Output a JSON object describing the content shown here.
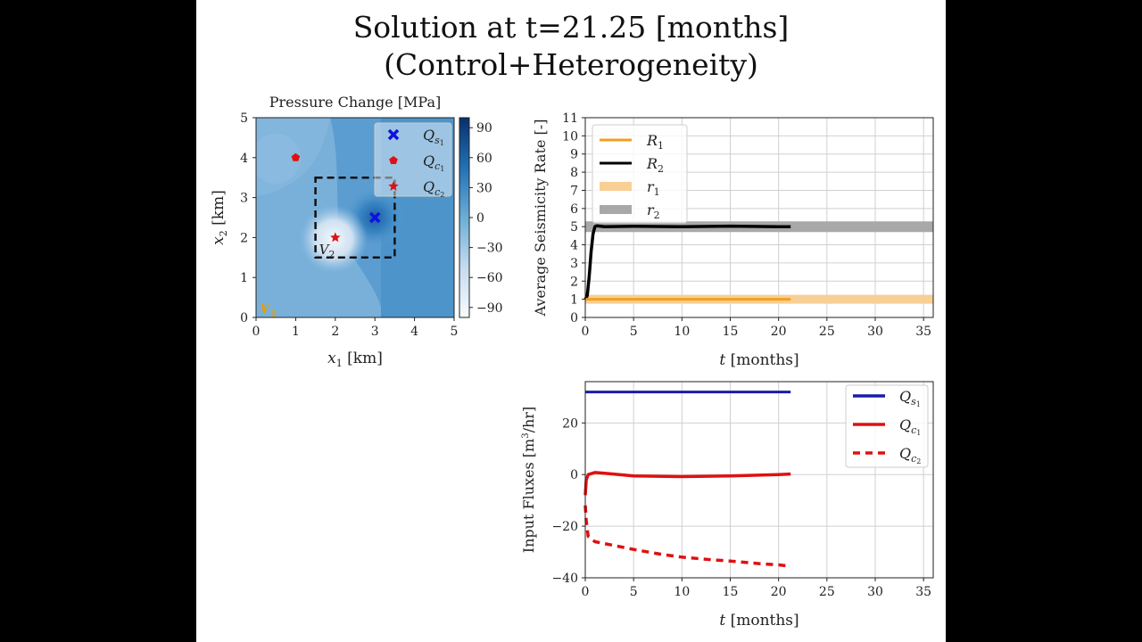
{
  "title_line1": "Solution at t=21.25 [months]",
  "title_line2": "(Control+Heterogeneity)",
  "chart_data": [
    {
      "type": "heatmap",
      "title": "Pressure Change [MPa]",
      "xlabel": "x1 [km]",
      "ylabel": "x2 [km]",
      "xlim": [
        0,
        5
      ],
      "ylim": [
        0,
        5
      ],
      "xticks": [
        "0",
        "1",
        "2",
        "3",
        "4",
        "5"
      ],
      "yticks": [
        "0",
        "1",
        "2",
        "3",
        "4",
        "5"
      ],
      "colorbar_ticks": [
        "90",
        "60",
        "30",
        "0",
        "−30",
        "−60",
        "−90"
      ],
      "colorbar_range": [
        -100,
        100
      ],
      "colormap": [
        "#f7fbff",
        "#08306b"
      ],
      "legend_position": "top-right",
      "legend": [
        {
          "label": "Q_s1",
          "marker": "x",
          "color": "#1010e0"
        },
        {
          "label": "Q_c1",
          "marker": "pentagon",
          "color": "#e01010"
        },
        {
          "label": "Q_c2",
          "marker": "star",
          "color": "#e01010"
        }
      ],
      "points": [
        {
          "name": "Q_s1",
          "x": 3.0,
          "y": 2.5,
          "marker": "x",
          "color": "#1010e0"
        },
        {
          "name": "Q_c1",
          "x": 1.0,
          "y": 4.0,
          "marker": "pentagon",
          "color": "#e01010"
        },
        {
          "name": "Q_c2",
          "x": 2.0,
          "y": 2.0,
          "marker": "star",
          "color": "#e01010"
        }
      ],
      "region_V2": {
        "label": "V2",
        "x": [
          1.5,
          3.5
        ],
        "y": [
          1.5,
          3.5
        ]
      },
      "region_V1_label": "V1",
      "region_V1_color": "#e69f00"
    },
    {
      "type": "line",
      "xlabel": "t [months]",
      "ylabel": "Average Seismicity Rate [-]",
      "xlim": [
        0,
        36
      ],
      "ylim": [
        0,
        11
      ],
      "xticks": [
        0,
        5,
        10,
        15,
        20,
        25,
        30,
        35
      ],
      "yticks": [
        0,
        1,
        2,
        3,
        4,
        5,
        6,
        7,
        8,
        9,
        10,
        11
      ],
      "grid": true,
      "legend_position": "top-left",
      "series": [
        {
          "name": "R1",
          "color": "#f0a020",
          "width": 3,
          "x": [
            0,
            1,
            21.25
          ],
          "y": [
            1,
            1,
            1
          ]
        },
        {
          "name": "R2",
          "color": "#000000",
          "width": 3.5,
          "x": [
            0,
            0.2,
            0.4,
            0.6,
            0.8,
            1.0,
            1.2,
            2,
            5,
            10,
            15,
            20,
            21.25
          ],
          "y": [
            1.0,
            1.2,
            2.2,
            3.6,
            4.6,
            5.0,
            5.05,
            5.0,
            5.02,
            5.0,
            5.03,
            5.0,
            5.0
          ]
        },
        {
          "name": "r1",
          "color": "#f8cf94",
          "width": 10,
          "x": [
            0,
            36
          ],
          "y": [
            1,
            1
          ]
        },
        {
          "name": "r2",
          "color": "#a8a8a8",
          "width": 12,
          "x": [
            0,
            36
          ],
          "y": [
            5,
            5
          ]
        }
      ]
    },
    {
      "type": "line",
      "xlabel": "t [months]",
      "ylabel": "Input Fluxes [m3/hr]",
      "xlim": [
        0,
        36
      ],
      "ylim": [
        -40,
        36
      ],
      "xticks": [
        0,
        5,
        10,
        15,
        20,
        25,
        30,
        35
      ],
      "yticks": [
        -40,
        -20,
        0,
        20
      ],
      "grid": true,
      "legend_position": "top-right",
      "series": [
        {
          "name": "Q_s1",
          "color": "#1a1aaa",
          "width": 3,
          "dash": "none",
          "x": [
            0,
            21.25
          ],
          "y": [
            32,
            32
          ]
        },
        {
          "name": "Q_c1",
          "color": "#e01010",
          "width": 3.5,
          "dash": "none",
          "x": [
            0,
            0.1,
            0.3,
            1,
            2,
            5,
            10,
            15,
            20,
            21.25
          ],
          "y": [
            -8,
            -2,
            0,
            0.8,
            0.5,
            -0.5,
            -0.8,
            -0.5,
            0,
            0.2
          ]
        },
        {
          "name": "Q_c2",
          "color": "#e01010",
          "width": 3.5,
          "dash": "8,6",
          "x": [
            0,
            0.1,
            0.3,
            1,
            3,
            5,
            8,
            10,
            13,
            15,
            18,
            20,
            21.25
          ],
          "y": [
            -12,
            -18,
            -24,
            -26,
            -27.5,
            -29,
            -31,
            -32,
            -33,
            -33.5,
            -34.5,
            -35,
            -35.5
          ]
        }
      ]
    }
  ]
}
